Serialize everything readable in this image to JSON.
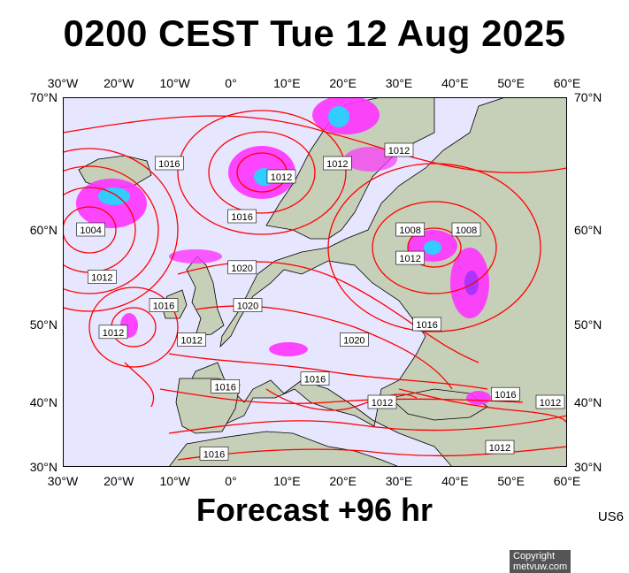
{
  "header": {
    "title": "0200 CEST Tue 12 Aug 2025"
  },
  "footer": {
    "forecast": "Forecast +96 hr",
    "code": "US6"
  },
  "axes": {
    "lon_labels": [
      "30°W",
      "20°W",
      "10°W",
      "0°",
      "10°E",
      "20°E",
      "30°E",
      "40°E",
      "50°E",
      "60°E"
    ],
    "lat_labels": [
      "70°N",
      "60°N",
      "50°N",
      "40°N",
      "30°N"
    ]
  },
  "map": {
    "copyright": "Copyright metvuw.com",
    "colors": {
      "sea": "#e6e6ff",
      "isobar": "#ff0000",
      "rain_light": "#ff33ff",
      "rain_medium": "#aa33ff",
      "rain_heavy": "#33ccff",
      "land": "#c6cfb8"
    },
    "isobar_labels": [
      {
        "text": "1012",
        "lon": 19,
        "lat": 65
      },
      {
        "text": "1012",
        "lon": 9,
        "lat": 64
      },
      {
        "text": "1012",
        "lon": 30,
        "lat": 66
      },
      {
        "text": "1016",
        "lon": -11,
        "lat": 65
      },
      {
        "text": "1016",
        "lon": 2,
        "lat": 61
      },
      {
        "text": "1004",
        "lon": -25,
        "lat": 60
      },
      {
        "text": "1008",
        "lon": 32,
        "lat": 60
      },
      {
        "text": "1008",
        "lon": 42,
        "lat": 60
      },
      {
        "text": "1012",
        "lon": 32,
        "lat": 57
      },
      {
        "text": "1012",
        "lon": -23,
        "lat": 55
      },
      {
        "text": "1020",
        "lon": 2,
        "lat": 56
      },
      {
        "text": "1016",
        "lon": -12,
        "lat": 52
      },
      {
        "text": "1020",
        "lon": 3,
        "lat": 52
      },
      {
        "text": "1016",
        "lon": 35,
        "lat": 50
      },
      {
        "text": "1012",
        "lon": -21,
        "lat": 49
      },
      {
        "text": "1020",
        "lon": 22,
        "lat": 48
      },
      {
        "text": "1012",
        "lon": -7,
        "lat": 48
      },
      {
        "text": "1016",
        "lon": 15,
        "lat": 43
      },
      {
        "text": "1016",
        "lon": -1,
        "lat": 42
      },
      {
        "text": "1016",
        "lon": 49,
        "lat": 41
      },
      {
        "text": "1012",
        "lon": 57,
        "lat": 40
      },
      {
        "text": "1012",
        "lon": 27,
        "lat": 40
      },
      {
        "text": "1012",
        "lon": 48,
        "lat": 33
      },
      {
        "text": "1016",
        "lon": -3,
        "lat": 32
      }
    ]
  }
}
